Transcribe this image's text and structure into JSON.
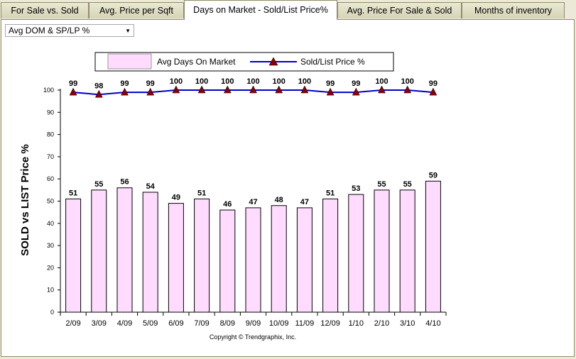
{
  "tabs": [
    {
      "label": "For Sale vs. Sold"
    },
    {
      "label": "Avg. Price per Sqft"
    },
    {
      "label": "Days on Market - Sold/List Price%"
    },
    {
      "label": "Avg. Price For Sale & Sold"
    },
    {
      "label": "Months of inventory"
    }
  ],
  "active_tab": 2,
  "dropdown": {
    "selected": "Avg DOM & SP/LP %",
    "icon": "chevron-down-icon"
  },
  "chart_data": {
    "type": "bar",
    "categories": [
      "2/09",
      "3/09",
      "4/09",
      "5/09",
      "6/09",
      "7/09",
      "8/09",
      "9/09",
      "10/09",
      "11/09",
      "12/09",
      "1/10",
      "2/10",
      "3/10",
      "4/10"
    ],
    "series": [
      {
        "name": "Avg Days On Market",
        "type": "bar",
        "color": "#ffdcff",
        "values": [
          51,
          55,
          56,
          54,
          49,
          51,
          46,
          47,
          48,
          47,
          51,
          53,
          55,
          55,
          59
        ]
      },
      {
        "name": "Sold/List Price %",
        "type": "line",
        "color": "#0000c8",
        "marker_color": "#8b0000",
        "values": [
          99,
          98,
          99,
          99,
          100,
          100,
          100,
          100,
          100,
          100,
          99,
          99,
          100,
          100,
          99
        ]
      }
    ],
    "ylabel": "SOLD vs LIST Price %",
    "ylim": [
      0,
      100
    ],
    "yticks": [
      0,
      10,
      20,
      30,
      40,
      50,
      60,
      70,
      80,
      90,
      100
    ],
    "legend_position": "top-center",
    "footer": "Copyright © Trendgraphix, Inc."
  }
}
